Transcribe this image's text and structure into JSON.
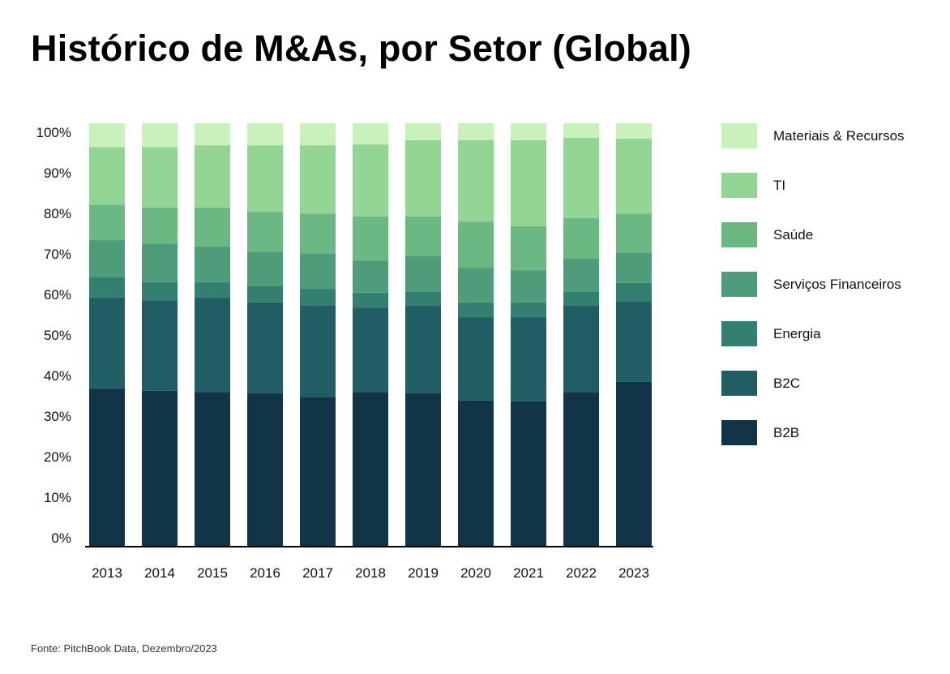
{
  "chart_data": {
    "type": "bar",
    "stacked": true,
    "normalized": true,
    "title": "Histórico de M&As, por Setor (Global)",
    "source": "Fonte: PitchBook Data, Dezembro/2023",
    "categories": [
      "2013",
      "2014",
      "2015",
      "2016",
      "2017",
      "2018",
      "2019",
      "2020",
      "2021",
      "2022",
      "2023"
    ],
    "y_ticks": [
      "0%",
      "10%",
      "20%",
      "30%",
      "40%",
      "50%",
      "60%",
      "70%",
      "80%",
      "90%",
      "100%"
    ],
    "ylim": [
      0,
      100
    ],
    "grid": false,
    "legend_position": "right",
    "series": [
      {
        "name": "B2B",
        "color": "#113547",
        "values": [
          37.4,
          36.8,
          36.4,
          36.2,
          35.4,
          36.4,
          36.2,
          34.5,
          34.3,
          36.4,
          38.9
        ]
      },
      {
        "name": "B2C",
        "color": "#215e63",
        "values": [
          21.4,
          21.4,
          22.4,
          21.5,
          21.5,
          20.1,
          20.7,
          19.7,
          19.9,
          20.5,
          19.1
        ]
      },
      {
        "name": "Energia",
        "color": "#337f70",
        "values": [
          4.8,
          4.3,
          3.7,
          3.8,
          4.0,
          3.5,
          3.4,
          3.5,
          3.5,
          3.4,
          4.3
        ]
      },
      {
        "name": "Serviços Financeiros",
        "color": "#4e9c7a",
        "values": [
          8.8,
          9.1,
          8.4,
          8.2,
          8.4,
          7.6,
          8.3,
          8.2,
          7.6,
          7.7,
          7.2
        ]
      },
      {
        "name": "Saúde",
        "color": "#6bb882",
        "values": [
          8.4,
          8.5,
          9.2,
          9.4,
          9.4,
          10.4,
          9.4,
          10.9,
          10.4,
          9.6,
          9.2
        ]
      },
      {
        "name": "TI",
        "color": "#93d593",
        "values": [
          13.6,
          14.3,
          14.7,
          15.7,
          16.1,
          17.0,
          18.0,
          19.2,
          20.3,
          19.0,
          17.7
        ]
      },
      {
        "name": "Materiais & Recursos",
        "color": "#c9f1bc",
        "values": [
          5.6,
          5.6,
          5.2,
          5.2,
          5.2,
          5.0,
          4.0,
          4.0,
          4.0,
          3.4,
          3.6
        ]
      }
    ]
  }
}
